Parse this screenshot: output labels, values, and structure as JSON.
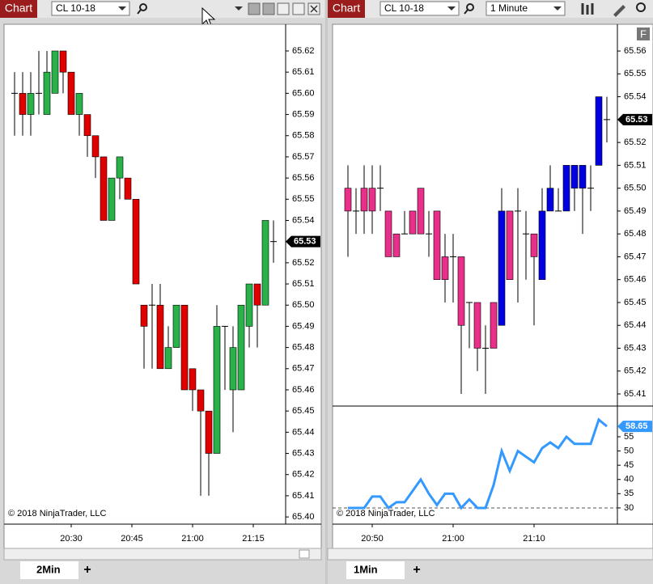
{
  "windows": [
    {
      "title": "Chart",
      "instrument": "CL 10-18",
      "tab": "2Min",
      "add_tab": "+"
    },
    {
      "title": "Chart",
      "instrument": "CL 10-18",
      "interval": "1 Minute",
      "tab": "1Min",
      "add_tab": "+",
      "panel_button": "F"
    }
  ],
  "chart_data": [
    {
      "type": "candlestick",
      "watermark": "© 2018 NinjaTrader, LLC",
      "up_color": "#2ab24a",
      "down_color": "#e00000",
      "open": [
        65.6,
        65.6,
        65.59,
        65.6,
        65.59,
        65.6,
        65.62,
        65.61,
        65.59,
        65.59,
        65.58,
        65.57,
        65.54,
        65.56,
        65.56,
        65.55,
        65.5,
        65.5,
        65.5,
        65.47,
        65.48,
        65.5,
        65.47,
        65.46,
        65.45,
        65.43,
        65.49,
        65.46,
        65.46,
        65.49,
        65.51,
        65.5,
        65.53
      ],
      "high": [
        65.61,
        65.61,
        65.61,
        65.62,
        65.62,
        65.62,
        65.62,
        65.61,
        65.6,
        65.59,
        65.58,
        65.57,
        65.56,
        65.57,
        65.56,
        65.55,
        65.5,
        65.51,
        65.51,
        65.49,
        65.5,
        65.5,
        65.47,
        65.46,
        65.45,
        65.5,
        65.49,
        65.49,
        65.5,
        65.51,
        65.51,
        65.54,
        65.54
      ],
      "low": [
        65.58,
        65.58,
        65.58,
        65.59,
        65.59,
        65.6,
        65.6,
        65.59,
        65.58,
        65.57,
        65.56,
        65.54,
        65.54,
        65.55,
        65.55,
        65.51,
        65.47,
        65.47,
        65.47,
        65.47,
        65.48,
        65.46,
        65.45,
        65.41,
        65.41,
        65.43,
        65.46,
        65.44,
        65.46,
        65.48,
        65.48,
        65.5,
        65.52
      ],
      "close": [
        65.6,
        65.59,
        65.6,
        65.6,
        65.61,
        65.62,
        65.61,
        65.59,
        65.6,
        65.58,
        65.57,
        65.54,
        65.56,
        65.57,
        65.55,
        65.51,
        65.49,
        65.5,
        65.47,
        65.48,
        65.5,
        65.46,
        65.46,
        65.45,
        65.43,
        65.49,
        65.49,
        65.48,
        65.5,
        65.51,
        65.5,
        65.54,
        65.53
      ],
      "last_price": 65.53,
      "xlim": [
        -1.3,
        33.5
      ],
      "xticks": [
        {
          "value": 7,
          "label": "20:30"
        },
        {
          "value": 14.5,
          "label": "20:45"
        },
        {
          "value": 22,
          "label": "21:00"
        },
        {
          "value": 29.5,
          "label": "21:15"
        }
      ],
      "ylim": [
        65.3966,
        65.6326
      ],
      "yticks": [
        {
          "value": 65.4,
          "label": "65.40"
        },
        65.41,
        65.42,
        65.43,
        65.44,
        65.45,
        65.46,
        65.47,
        65.48,
        65.49,
        {
          "value": 65.5,
          "label": "65.50"
        },
        65.51,
        65.52,
        65.53,
        65.54,
        65.55,
        65.56,
        65.57,
        65.58,
        65.59,
        {
          "value": 65.6,
          "label": "65.60"
        },
        65.61,
        65.62
      ]
    },
    {
      "type": "candlestick",
      "watermark": "© 2018 NinjaTrader, LLC",
      "colors": [
        "#e8308a",
        "#e8308a",
        "#e8308a",
        "#e8308a",
        "#e8308a",
        "#e8308a",
        "#e8308a",
        "#e8308a",
        "#e8308a",
        "#e8308a",
        "#e8308a",
        "#e8308a",
        "#e8308a",
        "#e8308a",
        "#e8308a",
        "#e8308a",
        "#e8308a",
        "#e8308a",
        "#e8308a",
        "#0000e0",
        "#e8308a",
        "#e8308a",
        "#e8308a",
        "#e8308a",
        "#0000e0",
        "#0000e0",
        "#0000e0",
        "#0000e0",
        "#0000e0",
        "#0000e0",
        "#0000e0",
        "#0000e0",
        "#0000e0"
      ],
      "open": [
        65.5,
        65.49,
        65.5,
        65.5,
        65.5,
        65.49,
        65.48,
        65.48,
        65.49,
        65.5,
        65.48,
        65.49,
        65.47,
        65.47,
        65.47,
        65.45,
        65.45,
        65.43,
        65.43,
        65.44,
        65.49,
        65.49,
        65.48,
        65.47,
        65.46,
        65.49,
        65.49,
        65.49,
        65.5,
        65.51,
        65.5,
        65.51,
        65.53
      ],
      "high": [
        65.51,
        65.5,
        65.51,
        65.51,
        65.51,
        65.49,
        65.48,
        65.49,
        65.49,
        65.5,
        65.49,
        65.49,
        65.48,
        65.48,
        65.47,
        65.45,
        65.45,
        65.44,
        65.45,
        65.5,
        65.49,
        65.5,
        65.49,
        65.48,
        65.5,
        65.51,
        65.5,
        65.51,
        65.51,
        65.51,
        65.51,
        65.54,
        65.54
      ],
      "low": [
        65.47,
        65.48,
        65.48,
        65.48,
        65.49,
        65.47,
        65.47,
        65.48,
        65.48,
        65.48,
        65.47,
        65.46,
        65.45,
        65.45,
        65.41,
        65.43,
        65.42,
        65.41,
        65.43,
        65.44,
        65.46,
        65.45,
        65.46,
        65.44,
        65.46,
        65.49,
        65.49,
        65.49,
        65.49,
        65.48,
        65.49,
        65.51,
        65.52
      ],
      "close": [
        65.49,
        65.49,
        65.49,
        65.49,
        65.5,
        65.47,
        65.47,
        65.48,
        65.48,
        65.48,
        65.48,
        65.46,
        65.46,
        65.47,
        65.44,
        65.45,
        65.43,
        65.43,
        65.45,
        65.49,
        65.46,
        65.49,
        65.48,
        65.48,
        65.49,
        65.5,
        65.49,
        65.51,
        65.51,
        65.5,
        65.5,
        65.54,
        65.53
      ],
      "last_price": 65.53,
      "xlim": [
        -1.9,
        33.3
      ],
      "xticks": [
        {
          "value": 3,
          "label": "20:50"
        },
        {
          "value": 13,
          "label": "21:00"
        },
        {
          "value": 23,
          "label": "21:10"
        }
      ],
      "ylim": [
        65.4047,
        65.5717
      ],
      "yticks": [
        65.41,
        65.42,
        65.43,
        65.44,
        65.45,
        65.46,
        65.47,
        65.48,
        65.49,
        {
          "value": 65.5,
          "label": "65.50"
        },
        65.51,
        65.52,
        65.53,
        65.54,
        65.55,
        65.56
      ]
    },
    {
      "type": "line",
      "color": "#3399ff",
      "reference": 30,
      "values": [
        30,
        30,
        30,
        34,
        34,
        30,
        32,
        32,
        36,
        40,
        35,
        31,
        35,
        35,
        30,
        33,
        30,
        30,
        38,
        50,
        43,
        50,
        48,
        46,
        51,
        53,
        51,
        55,
        52.5,
        52.5,
        52.5,
        61,
        58.65
      ],
      "xlim": [
        -1.9,
        33.3
      ],
      "ylim": [
        24.3,
        65.5
      ],
      "yticks": [
        30,
        35,
        40,
        45,
        50,
        55
      ]
    }
  ]
}
